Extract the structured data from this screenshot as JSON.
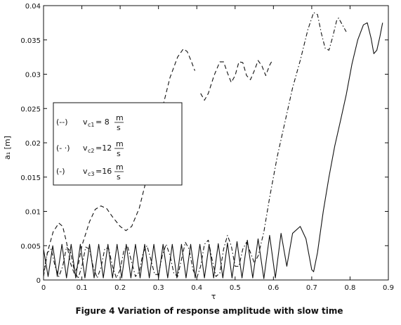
{
  "caption": "Figure 4 Variation of response amplitude with slow time",
  "chart_data": {
    "type": "line",
    "xlabel": "τ",
    "ylabel": "a₁ [m]",
    "xlim": [
      0,
      0.9
    ],
    "ylim": [
      0,
      0.04
    ],
    "grid": false,
    "legend_position": "left",
    "x_ticks": [
      "0",
      "0.1",
      "0.2",
      "0.3",
      "0.4",
      "0.5",
      "0.6",
      "0.7",
      "0.8",
      "0.9"
    ],
    "y_ticks": [
      "0",
      "0.005",
      "0.01",
      "0.015",
      "0.02",
      "0.025",
      "0.03",
      "0.035",
      "0.04"
    ],
    "legend": [
      {
        "style": "(--)",
        "var": "v",
        "sub": "c1",
        "value": "= 8",
        "unit_num": "m",
        "unit_den": "s"
      },
      {
        "style": "(- ·)",
        "var": "v",
        "sub": "c2",
        "value": "=12",
        "unit_num": "m",
        "unit_den": "s"
      },
      {
        "style": "(-)",
        "var": "v",
        "sub": "c3",
        "value": "=16",
        "unit_num": "m",
        "unit_den": "s"
      }
    ],
    "series": [
      {
        "dash": "dashed",
        "segments": [
          [
            [
              0,
              0.0005
            ],
            [
              0.01,
              0.004
            ],
            [
              0.025,
              0.007
            ],
            [
              0.04,
              0.0083
            ],
            [
              0.05,
              0.0078
            ],
            [
              0.06,
              0.0055
            ],
            [
              0.07,
              0.0025
            ],
            [
              0.08,
              0.001
            ],
            [
              0.09,
              0.002
            ],
            [
              0.1,
              0.005
            ],
            [
              0.12,
              0.0085
            ],
            [
              0.135,
              0.0103
            ],
            [
              0.15,
              0.0108
            ],
            [
              0.165,
              0.0104
            ],
            [
              0.18,
              0.0092
            ],
            [
              0.2,
              0.0078
            ],
            [
              0.215,
              0.0072
            ],
            [
              0.23,
              0.0078
            ],
            [
              0.25,
              0.0105
            ],
            [
              0.27,
              0.015
            ],
            [
              0.29,
              0.02
            ],
            [
              0.31,
              0.025
            ],
            [
              0.33,
              0.0295
            ],
            [
              0.35,
              0.0325
            ],
            [
              0.365,
              0.0337
            ],
            [
              0.375,
              0.0333
            ],
            [
              0.385,
              0.032
            ],
            [
              0.395,
              0.0305
            ]
          ],
          [
            [
              0.41,
              0.0272
            ],
            [
              0.42,
              0.0262
            ],
            [
              0.43,
              0.0272
            ],
            [
              0.445,
              0.0298
            ],
            [
              0.46,
              0.0318
            ],
            [
              0.47,
              0.0318
            ],
            [
              0.48,
              0.0302
            ],
            [
              0.49,
              0.0288
            ],
            [
              0.5,
              0.0298
            ],
            [
              0.51,
              0.0318
            ],
            [
              0.52,
              0.0317
            ],
            [
              0.53,
              0.0298
            ],
            [
              0.54,
              0.0292
            ],
            [
              0.55,
              0.0305
            ],
            [
              0.56,
              0.032
            ],
            [
              0.57,
              0.0312
            ],
            [
              0.58,
              0.0298
            ],
            [
              0.59,
              0.0313
            ],
            [
              0.595,
              0.0318
            ]
          ]
        ]
      },
      {
        "dash": "dashdot",
        "segments": [
          [
            [
              0,
              0.001
            ],
            [
              0.01,
              0.004
            ],
            [
              0.02,
              0.0045
            ],
            [
              0.03,
              0.002
            ],
            [
              0.04,
              0.0005
            ],
            [
              0.05,
              0.002
            ],
            [
              0.06,
              0.0048
            ],
            [
              0.07,
              0.0042
            ],
            [
              0.08,
              0.0015
            ],
            [
              0.09,
              0.0002
            ],
            [
              0.1,
              0.002
            ],
            [
              0.11,
              0.0048
            ],
            [
              0.12,
              0.0045
            ],
            [
              0.13,
              0.0018
            ],
            [
              0.14,
              0.0003
            ],
            [
              0.15,
              0.0018
            ],
            [
              0.16,
              0.0046
            ],
            [
              0.17,
              0.0046
            ],
            [
              0.18,
              0.002
            ],
            [
              0.19,
              0.0003
            ],
            [
              0.2,
              0.0015
            ],
            [
              0.21,
              0.0044
            ],
            [
              0.22,
              0.0048
            ],
            [
              0.23,
              0.0026
            ],
            [
              0.24,
              0.0005
            ],
            [
              0.25,
              0.0012
            ],
            [
              0.26,
              0.004
            ],
            [
              0.27,
              0.005
            ],
            [
              0.28,
              0.003
            ],
            [
              0.29,
              0.0008
            ],
            [
              0.3,
              0.0008
            ],
            [
              0.31,
              0.0036
            ],
            [
              0.32,
              0.0052
            ],
            [
              0.33,
              0.0036
            ],
            [
              0.34,
              0.001
            ],
            [
              0.35,
              0.0005
            ],
            [
              0.36,
              0.003
            ],
            [
              0.37,
              0.0055
            ],
            [
              0.38,
              0.0045
            ],
            [
              0.39,
              0.0015
            ],
            [
              0.4,
              0.0003
            ],
            [
              0.41,
              0.002
            ],
            [
              0.42,
              0.0052
            ],
            [
              0.43,
              0.0058
            ],
            [
              0.44,
              0.003
            ],
            [
              0.45,
              0.0005
            ],
            [
              0.46,
              0.001
            ],
            [
              0.47,
              0.0045
            ],
            [
              0.48,
              0.0065
            ],
            [
              0.49,
              0.005
            ],
            [
              0.5,
              0.002
            ],
            [
              0.51,
              0.002
            ],
            [
              0.52,
              0.0045
            ],
            [
              0.53,
              0.0055
            ],
            [
              0.54,
              0.004
            ],
            [
              0.55,
              0.0025
            ],
            [
              0.56,
              0.0035
            ],
            [
              0.575,
              0.007
            ],
            [
              0.59,
              0.012
            ],
            [
              0.61,
              0.018
            ],
            [
              0.63,
              0.023
            ],
            [
              0.65,
              0.028
            ],
            [
              0.67,
              0.032
            ],
            [
              0.69,
              0.0365
            ],
            [
              0.705,
              0.039
            ],
            [
              0.715,
              0.0387
            ],
            [
              0.725,
              0.036
            ],
            [
              0.735,
              0.0338
            ],
            [
              0.745,
              0.0335
            ],
            [
              0.755,
              0.0355
            ],
            [
              0.765,
              0.0378
            ],
            [
              0.77,
              0.0382
            ],
            [
              0.78,
              0.0372
            ],
            [
              0.79,
              0.0362
            ]
          ]
        ]
      },
      {
        "dash": "solid",
        "segments": [
          [
            [
              0,
              0.0045
            ],
            [
              0.012,
              0.0005
            ],
            [
              0.024,
              0.005
            ],
            [
              0.036,
              0.0005
            ],
            [
              0.048,
              0.0052
            ],
            [
              0.06,
              0.0003
            ],
            [
              0.072,
              0.0052
            ],
            [
              0.084,
              0.0003
            ],
            [
              0.096,
              0.0052
            ],
            [
              0.108,
              0.0003
            ],
            [
              0.12,
              0.0052
            ],
            [
              0.132,
              0.0003
            ],
            [
              0.144,
              0.0052
            ],
            [
              0.156,
              0.0003
            ],
            [
              0.168,
              0.0052
            ],
            [
              0.18,
              0.0003
            ],
            [
              0.192,
              0.0052
            ],
            [
              0.204,
              0.0003
            ],
            [
              0.216,
              0.0052
            ],
            [
              0.228,
              0.0003
            ],
            [
              0.24,
              0.0052
            ],
            [
              0.252,
              0.0003
            ],
            [
              0.264,
              0.0052
            ],
            [
              0.276,
              0.0003
            ],
            [
              0.288,
              0.0052
            ],
            [
              0.3,
              0.0003
            ],
            [
              0.312,
              0.0052
            ],
            [
              0.324,
              0.0003
            ],
            [
              0.336,
              0.0052
            ],
            [
              0.348,
              0.0003
            ],
            [
              0.36,
              0.0052
            ],
            [
              0.372,
              0.0003
            ],
            [
              0.384,
              0.0052
            ],
            [
              0.396,
              0.0003
            ],
            [
              0.408,
              0.0052
            ],
            [
              0.42,
              0.0003
            ],
            [
              0.432,
              0.0052
            ],
            [
              0.444,
              0.0003
            ],
            [
              0.456,
              0.0053
            ],
            [
              0.468,
              0.0003
            ],
            [
              0.48,
              0.0054
            ],
            [
              0.492,
              0.0003
            ],
            [
              0.505,
              0.0056
            ],
            [
              0.518,
              0.0003
            ],
            [
              0.532,
              0.0058
            ],
            [
              0.546,
              0.0003
            ],
            [
              0.56,
              0.006
            ],
            [
              0.575,
              0.0002
            ],
            [
              0.59,
              0.0065
            ],
            [
              0.605,
              0.0003
            ],
            [
              0.62,
              0.0068
            ],
            [
              0.635,
              0.002
            ],
            [
              0.65,
              0.0068
            ],
            [
              0.67,
              0.0078
            ],
            [
              0.685,
              0.006
            ],
            [
              0.7,
              0.0015
            ],
            [
              0.705,
              0.0012
            ],
            [
              0.715,
              0.004
            ],
            [
              0.73,
              0.01
            ],
            [
              0.745,
              0.015
            ],
            [
              0.76,
              0.0195
            ],
            [
              0.775,
              0.0232
            ],
            [
              0.79,
              0.027
            ],
            [
              0.805,
              0.0315
            ],
            [
              0.82,
              0.035
            ],
            [
              0.835,
              0.0372
            ],
            [
              0.845,
              0.0375
            ],
            [
              0.855,
              0.0352
            ],
            [
              0.862,
              0.033
            ],
            [
              0.87,
              0.0335
            ],
            [
              0.878,
              0.0355
            ],
            [
              0.885,
              0.0375
            ]
          ]
        ]
      }
    ]
  }
}
